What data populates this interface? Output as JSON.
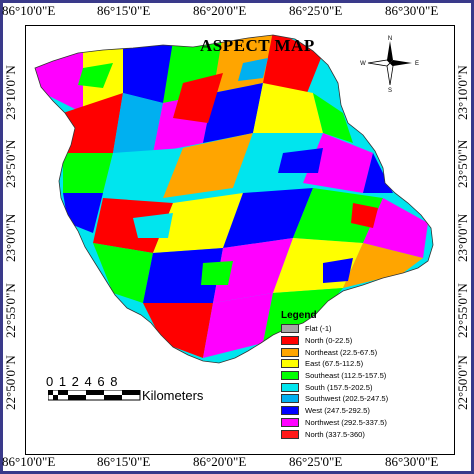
{
  "map": {
    "title": "ASPECT MAP",
    "top_coords": [
      "86°10'0\"E",
      "86°15'0\"E",
      "86°20'0\"E",
      "86°25'0\"E",
      "86°30'0\"E"
    ],
    "bottom_coords": [
      "86°10'0\"E",
      "86°15'0\"E",
      "86°20'0\"E",
      "86°25'0\"E",
      "86°30'0\"E"
    ],
    "left_coords": [
      "23°10'0\"N",
      "23°5'0\"N",
      "23°0'0\"N",
      "22°55'0\"N",
      "22°50'0\"N"
    ],
    "right_coords": [
      "23°10'0\"N",
      "23°5'0\"N",
      "23°0'0\"N",
      "22°55'0\"N",
      "22°50'0\"N"
    ],
    "north_arrow": {
      "n": "N",
      "s": "S",
      "e": "E",
      "w": "W",
      "icon": "north-arrow-icon"
    }
  },
  "legend": {
    "title": "Legend",
    "items": [
      {
        "label": "Flat (-1)",
        "color": "#a6a6a6"
      },
      {
        "label": "North (0-22.5)",
        "color": "#ff0000"
      },
      {
        "label": "Northeast (22.5-67.5)",
        "color": "#ffa500"
      },
      {
        "label": "East (67.5-112.5)",
        "color": "#ffff00"
      },
      {
        "label": "Southeast (112.5-157.5)",
        "color": "#00ff00"
      },
      {
        "label": "South (157.5-202.5)",
        "color": "#00e5ee"
      },
      {
        "label": "Southwest (202.5-247.5)",
        "color": "#00b0f0"
      },
      {
        "label": "West (247.5-292.5)",
        "color": "#0000ff"
      },
      {
        "label": "Northwest (292.5-337.5)",
        "color": "#ff00ff"
      },
      {
        "label": "North (337.5-360)",
        "color": "#ff1a1a"
      }
    ]
  },
  "scale": {
    "numbers": "0 1 2  4  6  8",
    "units": "Kilometers"
  }
}
